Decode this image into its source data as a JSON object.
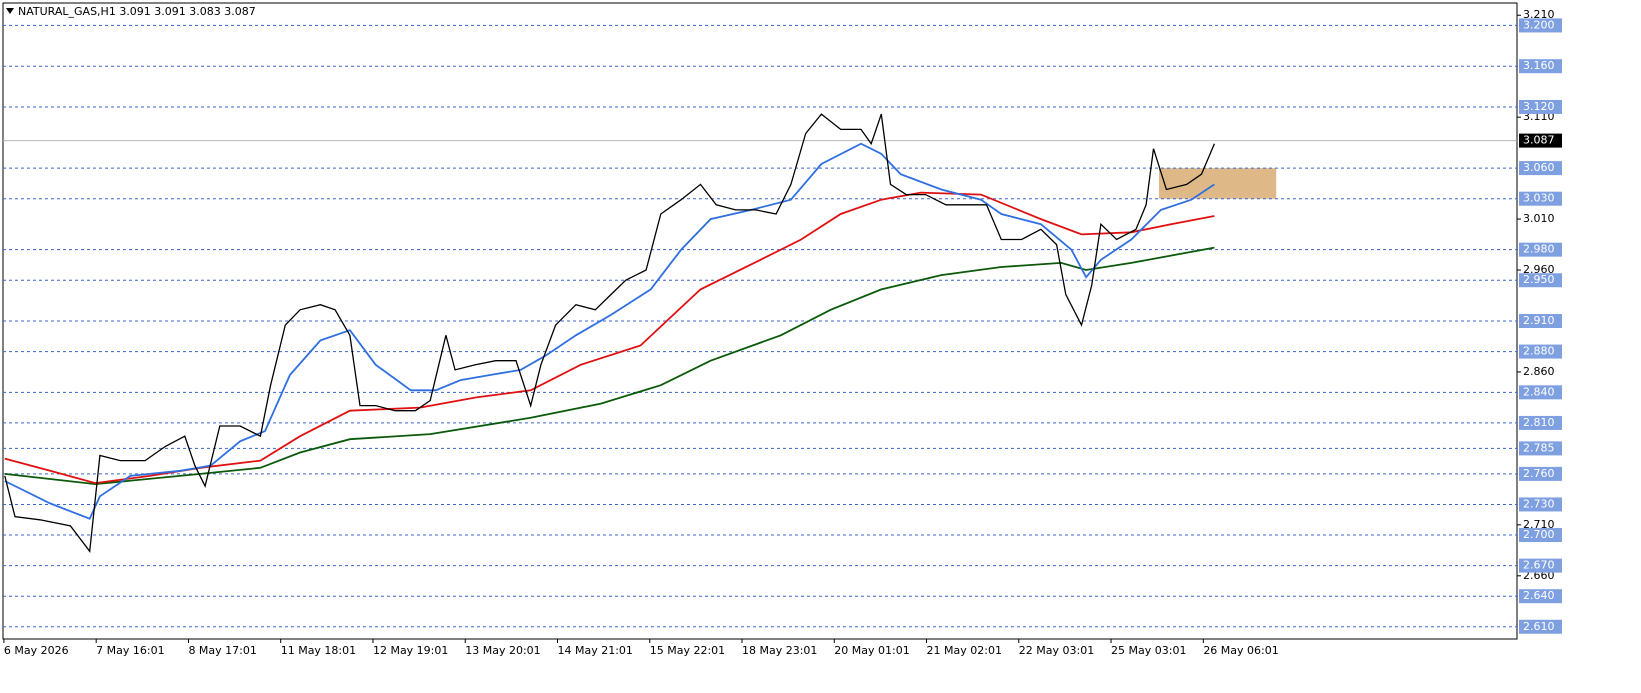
{
  "chart_data": {
    "type": "line",
    "title": "NATURAL_GAS,H1  3.091 3.091 3.083 3.087",
    "xlim": [
      -0.01,
      16.4
    ],
    "ylim": [
      2.598,
      3.222
    ],
    "xticks": [
      {
        "value": 0,
        "label": "6 May 2026"
      },
      {
        "value": 1,
        "label": "7 May 16:01"
      },
      {
        "value": 2,
        "label": "8 May 17:01"
      },
      {
        "value": 3,
        "label": "11 May 18:01"
      },
      {
        "value": 4,
        "label": "12 May 19:01"
      },
      {
        "value": 5,
        "label": "13 May 20:01"
      },
      {
        "value": 6,
        "label": "14 May 21:01"
      },
      {
        "value": 7,
        "label": "15 May 22:01"
      },
      {
        "value": 8,
        "label": "18 May 23:01"
      },
      {
        "value": 9,
        "label": "20 May 01:01"
      },
      {
        "value": 10,
        "label": "21 May 02:01"
      },
      {
        "value": 11,
        "label": "22 May 03:01"
      },
      {
        "value": 12,
        "label": "25 May 03:01"
      },
      {
        "value": 13,
        "label": "26 May 06:01"
      }
    ],
    "yticks": [
      {
        "value": 3.21,
        "label": "3.210"
      },
      {
        "value": 3.11,
        "label": "3.110"
      },
      {
        "value": 3.01,
        "label": "3.010"
      },
      {
        "value": 2.96,
        "label": "2.960"
      },
      {
        "value": 2.86,
        "label": "2.860"
      },
      {
        "value": 2.71,
        "label": "2.710"
      },
      {
        "value": 2.66,
        "label": "2.660"
      }
    ],
    "levels": [
      {
        "value": 3.2,
        "label": "3.200"
      },
      {
        "value": 3.16,
        "label": "3.160"
      },
      {
        "value": 3.12,
        "label": "3.120"
      },
      {
        "value": 3.06,
        "label": "3.060"
      },
      {
        "value": 3.03,
        "label": "3.030"
      },
      {
        "value": 2.98,
        "label": "2.980"
      },
      {
        "value": 2.95,
        "label": "2.950"
      },
      {
        "value": 2.91,
        "label": "2.910"
      },
      {
        "value": 2.88,
        "label": "2.880"
      },
      {
        "value": 2.84,
        "label": "2.840"
      },
      {
        "value": 2.81,
        "label": "2.810"
      },
      {
        "value": 2.785,
        "label": "2.785"
      },
      {
        "value": 2.76,
        "label": "2.760"
      },
      {
        "value": 2.73,
        "label": "2.730"
      },
      {
        "value": 2.7,
        "label": "2.700"
      },
      {
        "value": 2.67,
        "label": "2.670"
      },
      {
        "value": 2.64,
        "label": "2.640"
      },
      {
        "value": 2.61,
        "label": "2.610"
      }
    ],
    "level_color": "#3a66d0",
    "current": 3.087,
    "zone": {
      "x": [
        12.52,
        13.79
      ],
      "y": [
        3.03,
        3.06
      ],
      "color": "#deb887"
    },
    "series": [
      {
        "color": "#000000",
        "x": [
          0.01,
          0.12,
          0.39,
          0.72,
          0.93,
          1.04,
          1.26,
          1.53,
          1.75,
          1.96,
          2.07,
          2.18,
          2.34,
          2.56,
          2.78,
          2.89,
          3.05,
          3.21,
          3.43,
          3.59,
          3.75,
          3.86,
          4.03,
          4.24,
          4.46,
          4.62,
          4.79,
          4.89,
          5.11,
          5.33,
          5.55,
          5.71,
          5.82,
          5.98,
          6.2,
          6.41,
          6.58,
          6.74,
          6.96,
          7.12,
          7.34,
          7.55,
          7.72,
          7.93,
          8.15,
          8.37,
          8.53,
          8.69,
          8.86,
          9.07,
          9.29,
          9.4,
          9.51,
          9.61,
          9.78,
          9.99,
          10.21,
          10.43,
          10.65,
          10.81,
          11.03,
          11.24,
          11.41,
          11.51,
          11.68,
          11.79,
          11.89,
          12.06,
          12.27,
          12.38,
          12.46,
          12.6,
          12.82,
          12.98,
          13.12
        ],
        "values": [
          2.758,
          2.718,
          2.715,
          2.709,
          2.684,
          2.778,
          2.773,
          2.773,
          2.787,
          2.797,
          2.768,
          2.748,
          2.807,
          2.807,
          2.797,
          2.847,
          2.906,
          2.921,
          2.926,
          2.921,
          2.896,
          2.827,
          2.827,
          2.822,
          2.822,
          2.832,
          2.896,
          2.862,
          2.867,
          2.871,
          2.871,
          2.827,
          2.867,
          2.906,
          2.926,
          2.921,
          2.936,
          2.95,
          2.96,
          3.015,
          3.029,
          3.044,
          3.024,
          3.019,
          3.019,
          3.015,
          3.044,
          3.094,
          3.113,
          3.098,
          3.098,
          3.084,
          3.113,
          3.044,
          3.034,
          3.034,
          3.024,
          3.024,
          3.024,
          2.99,
          2.99,
          3.0,
          2.985,
          2.936,
          2.906,
          2.945,
          3.005,
          2.99,
          3.0,
          3.024,
          3.079,
          3.039,
          3.044,
          3.054,
          3.084
        ]
      },
      {
        "color": "#2f6fe0",
        "x": [
          0.01,
          0.5,
          0.93,
          1.04,
          1.37,
          1.91,
          2.24,
          2.56,
          2.83,
          3.1,
          3.43,
          3.75,
          4.03,
          4.41,
          4.68,
          4.95,
          5.27,
          5.6,
          5.87,
          6.2,
          6.58,
          7.01,
          7.34,
          7.66,
          8.1,
          8.53,
          8.86,
          9.29,
          9.51,
          9.72,
          10.16,
          10.59,
          10.81,
          11.24,
          11.57,
          11.73,
          11.89,
          12.22,
          12.54,
          12.87,
          13.12
        ],
        "values": [
          2.753,
          2.731,
          2.716,
          2.738,
          2.758,
          2.763,
          2.768,
          2.792,
          2.802,
          2.857,
          2.891,
          2.901,
          2.867,
          2.842,
          2.842,
          2.852,
          2.857,
          2.862,
          2.876,
          2.896,
          2.916,
          2.941,
          2.98,
          3.01,
          3.019,
          3.029,
          3.064,
          3.084,
          3.074,
          3.054,
          3.039,
          3.029,
          3.015,
          3.005,
          2.98,
          2.953,
          2.97,
          2.99,
          3.019,
          3.029,
          3.044
        ]
      },
      {
        "color": "#e01010",
        "x": [
          0.01,
          0.5,
          0.99,
          1.58,
          2.13,
          2.78,
          3.21,
          3.75,
          4.51,
          5.12,
          5.71,
          6.25,
          6.9,
          7.55,
          8.2,
          8.64,
          9.07,
          9.51,
          9.94,
          10.59,
          11.24,
          11.68,
          12.22,
          12.65,
          13.12
        ],
        "values": [
          2.775,
          2.763,
          2.751,
          2.758,
          2.766,
          2.773,
          2.797,
          2.822,
          2.825,
          2.835,
          2.842,
          2.867,
          2.886,
          2.941,
          2.97,
          2.99,
          3.015,
          3.029,
          3.036,
          3.034,
          3.01,
          2.995,
          2.997,
          3.005,
          3.013
        ]
      },
      {
        "color": "#0a5a0a",
        "x": [
          0.01,
          0.99,
          2.13,
          2.78,
          3.21,
          3.75,
          4.62,
          5.71,
          6.47,
          7.12,
          7.66,
          8.42,
          8.96,
          9.51,
          10.16,
          10.81,
          11.46,
          11.73,
          12.22,
          13.12
        ],
        "values": [
          2.76,
          2.75,
          2.76,
          2.766,
          2.781,
          2.794,
          2.799,
          2.815,
          2.829,
          2.847,
          2.871,
          2.896,
          2.921,
          2.941,
          2.955,
          2.963,
          2.967,
          2.96,
          2.967,
          2.982
        ]
      }
    ]
  }
}
